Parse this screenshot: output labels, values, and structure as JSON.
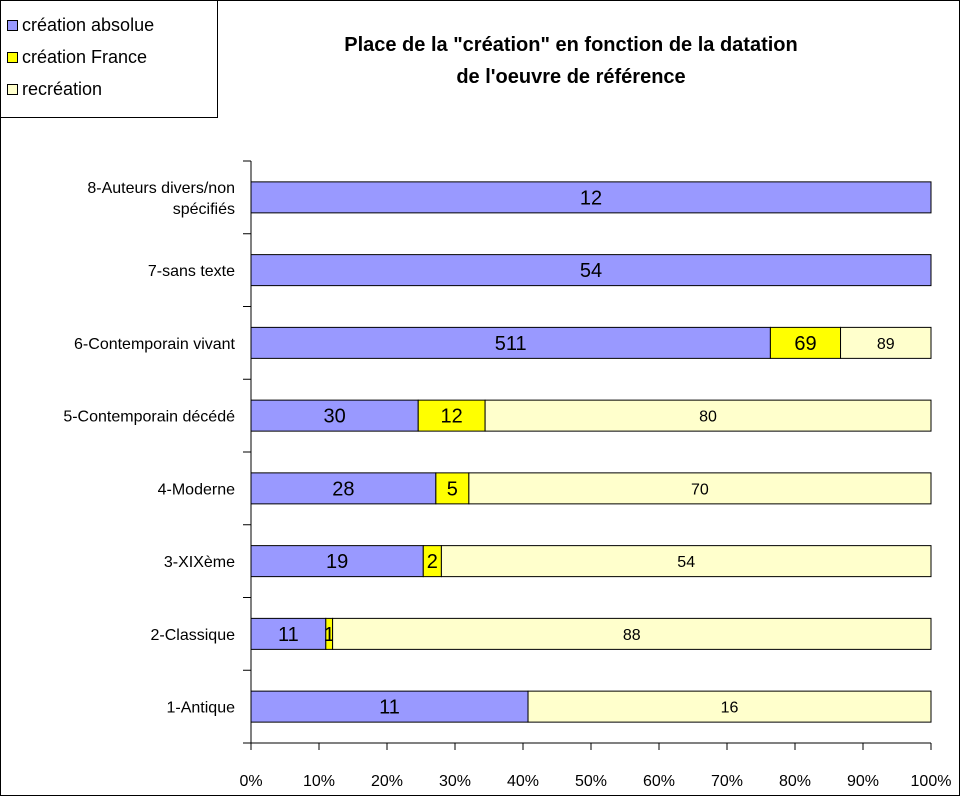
{
  "chart_data": {
    "type": "bar",
    "orientation": "horizontal",
    "stacked": "percent",
    "title": "Place de la \"création\" en fonction de la datation\nde l'oeuvre de référence",
    "categories": [
      "8-Auteurs divers/non spécifiés",
      "7-sans texte",
      "6-Contemporain vivant",
      "5-Contemporain décédé",
      "4-Moderne",
      "3-XIXème",
      "2-Classique",
      "1-Antique"
    ],
    "series": [
      {
        "name": "création absolue",
        "color": "#9999FF",
        "values": [
          12,
          54,
          511,
          30,
          28,
          19,
          11,
          11
        ]
      },
      {
        "name": "création France",
        "color": "#FFFF00",
        "values": [
          0,
          0,
          69,
          12,
          5,
          2,
          1,
          0
        ]
      },
      {
        "name": "recréation",
        "color": "#FFFFCC",
        "values": [
          0,
          0,
          89,
          80,
          70,
          54,
          88,
          16
        ]
      }
    ],
    "x_ticks": [
      "0%",
      "10%",
      "20%",
      "30%",
      "40%",
      "50%",
      "60%",
      "70%",
      "80%",
      "90%",
      "100%"
    ],
    "xlim": [
      0,
      100
    ],
    "grid": false,
    "legend_position": "top-left"
  }
}
